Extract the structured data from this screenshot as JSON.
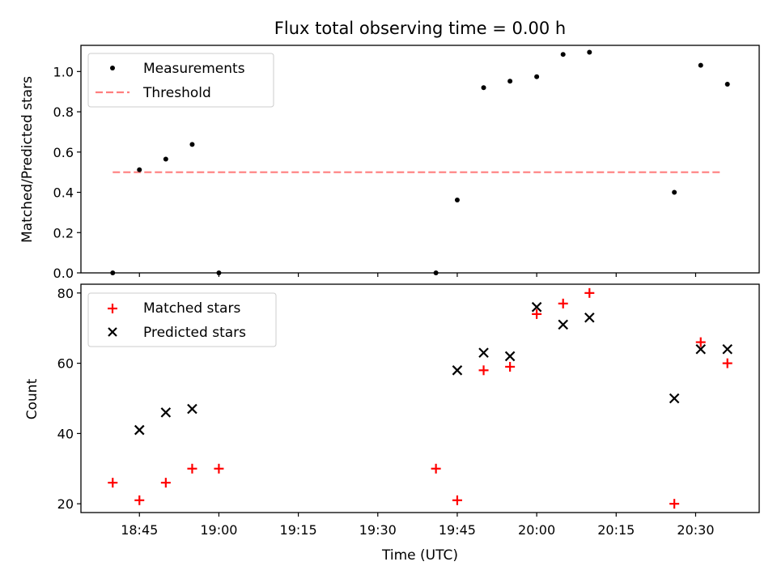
{
  "title": "Flux total observing time = 0.00 h",
  "chart_data": [
    {
      "type": "scatter",
      "ylabel": "Matched/Predicted stars",
      "ylim": [
        0,
        1.13
      ],
      "yticks": [
        {
          "value": 0.0,
          "label": "0.0"
        },
        {
          "value": 0.2,
          "label": "0.2"
        },
        {
          "value": 0.4,
          "label": "0.4"
        },
        {
          "value": 0.6,
          "label": "0.6"
        },
        {
          "value": 0.8,
          "label": "0.8"
        },
        {
          "value": 1.0,
          "label": "1.0"
        }
      ],
      "legend": {
        "location": "top-left",
        "measurements_label": "Measurements",
        "threshold_label": "Threshold"
      },
      "threshold": {
        "value": 0.5,
        "x_start": 18.666,
        "x_end": 20.583,
        "color": "#ff7f7f"
      },
      "measurements": {
        "color": "#000000",
        "x": [
          18.666,
          18.75,
          18.833,
          18.916,
          19.0,
          19.683,
          19.75,
          19.833,
          19.916,
          20.0,
          20.083,
          20.166,
          20.433,
          20.516,
          20.6
        ],
        "y": [
          0.0,
          0.512,
          0.565,
          0.638,
          0.0,
          0.0,
          0.362,
          0.92,
          0.952,
          0.974,
          1.085,
          1.096,
          0.4,
          1.031,
          0.937
        ]
      }
    },
    {
      "type": "scatter",
      "xlabel": "Time (UTC)",
      "ylabel": "Count",
      "ylim": [
        17.5,
        82.5
      ],
      "yticks": [
        {
          "value": 20,
          "label": "20"
        },
        {
          "value": 40,
          "label": "40"
        },
        {
          "value": 60,
          "label": "60"
        },
        {
          "value": 80,
          "label": "80"
        }
      ],
      "legend": {
        "location": "top-left",
        "matched_label": "Matched stars",
        "predicted_label": "Predicted stars"
      },
      "matched": {
        "color": "#ff0000",
        "marker": "+",
        "x": [
          18.666,
          18.75,
          18.833,
          18.916,
          19.0,
          19.683,
          19.75,
          19.833,
          19.916,
          20.0,
          20.083,
          20.166,
          20.433,
          20.516,
          20.6
        ],
        "y": [
          26,
          21,
          26,
          30,
          30,
          30,
          21,
          58,
          59,
          74,
          77,
          80,
          20,
          66,
          60
        ]
      },
      "predicted": {
        "color": "#000000",
        "marker": "x",
        "x": [
          18.75,
          18.833,
          18.916,
          19.75,
          19.833,
          19.916,
          20.0,
          20.083,
          20.166,
          20.433,
          20.516,
          20.6
        ],
        "y": [
          41,
          46,
          47,
          58,
          63,
          62,
          76,
          71,
          73,
          50,
          64,
          64
        ]
      }
    }
  ],
  "xaxis": {
    "xlim": [
      18.566,
      20.7
    ],
    "ticks": [
      {
        "value": 18.75,
        "label": "18:45"
      },
      {
        "value": 19.0,
        "label": "19:00"
      },
      {
        "value": 19.25,
        "label": "19:15"
      },
      {
        "value": 19.5,
        "label": "19:30"
      },
      {
        "value": 19.75,
        "label": "19:45"
      },
      {
        "value": 20.0,
        "label": "20:00"
      },
      {
        "value": 20.25,
        "label": "20:15"
      },
      {
        "value": 20.5,
        "label": "20:30"
      }
    ]
  }
}
